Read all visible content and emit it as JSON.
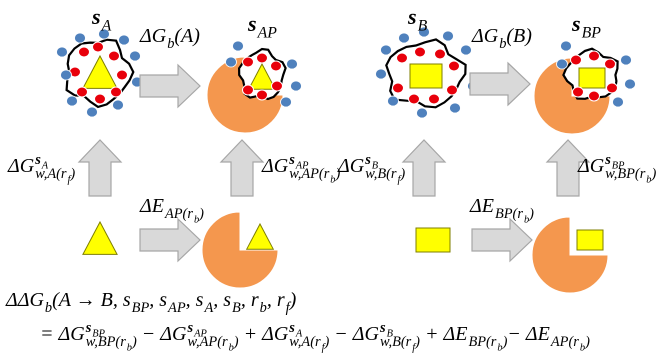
{
  "states": {
    "s_A": {
      "base": "s",
      "sub": "A"
    },
    "s_AP": {
      "base": "s",
      "sub": "AP"
    },
    "s_B": {
      "base": "s",
      "sub": "B"
    },
    "s_BP": {
      "base": "s",
      "sub": "BP"
    }
  },
  "arrows": {
    "bind_A": {
      "base": "ΔG",
      "sub": "b",
      "tail": "(A)"
    },
    "bind_B": {
      "base": "ΔG",
      "sub": "b",
      "tail": "(B)"
    },
    "solv_A": {
      "base": "ΔG",
      "sup": {
        "base": "s",
        "sub": "A"
      },
      "sub": {
        "base": "w,A(r",
        "sub": "f",
        "tail": ")"
      }
    },
    "solv_AP": {
      "base": "ΔG",
      "sup": {
        "base": "s",
        "sub": "AP"
      },
      "sub": {
        "base": "w,AP(r",
        "sub": "b",
        "tail": ")"
      }
    },
    "solv_B": {
      "base": "ΔG",
      "sup": {
        "base": "s",
        "sub": "B"
      },
      "sub": {
        "base": "w,B(r",
        "sub": "f",
        "tail": ")"
      }
    },
    "solv_BP": {
      "base": "ΔG",
      "sup": {
        "base": "s",
        "sub": "BP"
      },
      "sub": {
        "base": "w,BP(r",
        "sub": "b",
        "tail": ")"
      }
    },
    "energy_AP": {
      "base": "ΔE",
      "sub": {
        "base": "AP(r",
        "sub": "b",
        "tail": ")"
      }
    },
    "energy_BP": {
      "base": "ΔE",
      "sub": {
        "base": "BP(r",
        "sub": "b",
        "tail": ")"
      }
    }
  },
  "equation": {
    "line1": [
      {
        "base": "ΔΔG",
        "sub": "b",
        "tail": "(A → B, "
      },
      {
        "base": "s",
        "sub": "BP"
      },
      ", ",
      {
        "base": "s",
        "sub": "AP"
      },
      ", ",
      {
        "base": "s",
        "sub": "A"
      },
      ", ",
      {
        "base": "s",
        "sub": "B"
      },
      ", ",
      {
        "base": "r",
        "sub": "b"
      },
      ", ",
      {
        "base": "r",
        "sub": "f"
      },
      ")"
    ],
    "line2": [
      "= ",
      {
        "base": "ΔG",
        "sup": {
          "base": "s",
          "sub": "BP"
        },
        "sub": {
          "base": "w,BP(r",
          "sub": "b",
          "tail": ")"
        }
      },
      " − ",
      {
        "base": "ΔG",
        "sup": {
          "base": "s",
          "sub": "AP"
        },
        "sub": {
          "base": "w,AP(r",
          "sub": "b",
          "tail": ")"
        }
      },
      " + ",
      {
        "base": "ΔG",
        "sup": {
          "base": "s",
          "sub": "A"
        },
        "sub": {
          "base": "w,A(r",
          "sub": "f",
          "tail": ")"
        }
      },
      " − ",
      {
        "base": "ΔG",
        "sup": {
          "base": "s",
          "sub": "B"
        },
        "sub": {
          "base": "w,B(r",
          "sub": "f",
          "tail": ")"
        }
      },
      " + ",
      {
        "base": "ΔE",
        "sub": {
          "base": "BP(r",
          "sub": "b",
          "tail": ")"
        }
      },
      "− ",
      {
        "base": "ΔE",
        "sub": {
          "base": "AP(r",
          "sub": "b",
          "tail": ")"
        }
      }
    ]
  }
}
